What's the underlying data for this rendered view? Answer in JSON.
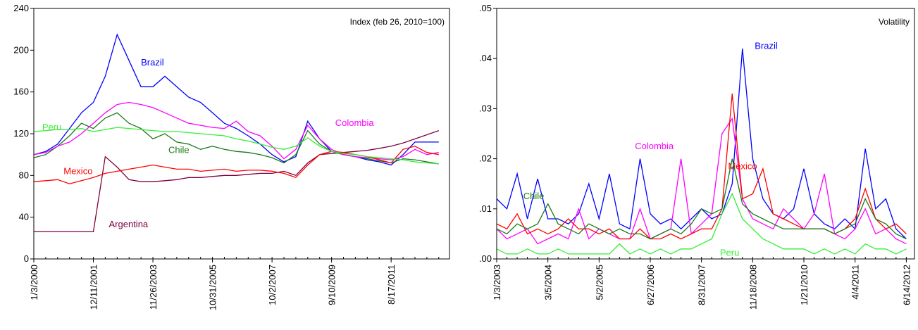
{
  "chart_data": [
    {
      "type": "line",
      "title": "Index (feb 26, 2010=100)",
      "categories": [
        "1/3/2000",
        null,
        null,
        null,
        null,
        "12/11/2001",
        null,
        null,
        null,
        null,
        "11/26/2003",
        null,
        null,
        null,
        null,
        "10/31/2005",
        null,
        null,
        null,
        null,
        "10/2/2007",
        null,
        null,
        null,
        null,
        "9/10/2009",
        null,
        null,
        null,
        null,
        "8/17/2011",
        null,
        null,
        null,
        null
      ],
      "series": [
        {
          "name": "Argentina",
          "color": "#800040",
          "values": [
            26,
            26,
            26,
            26,
            26,
            26,
            98,
            88,
            76,
            74,
            74,
            75,
            76,
            78,
            78,
            79,
            80,
            80,
            81,
            82,
            82,
            84,
            80,
            92,
            100,
            101,
            102,
            103,
            104,
            106,
            108,
            111,
            115,
            119,
            123
          ]
        },
        {
          "name": "Brazil",
          "color": "#0000ff",
          "values": [
            100,
            103,
            110,
            125,
            140,
            150,
            175,
            215,
            190,
            165,
            165,
            175,
            165,
            155,
            150,
            140,
            130,
            125,
            118,
            110,
            100,
            93,
            98,
            132,
            115,
            103,
            100,
            98,
            95,
            93,
            90,
            100,
            112,
            112,
            112
          ]
        },
        {
          "name": "Chile",
          "color": "#1a7a1a",
          "values": [
            97,
            100,
            108,
            118,
            130,
            125,
            135,
            140,
            130,
            125,
            115,
            120,
            112,
            110,
            105,
            108,
            105,
            103,
            102,
            100,
            97,
            92,
            100,
            123,
            110,
            103,
            100,
            98,
            96,
            94,
            92,
            96,
            95,
            93,
            91
          ]
        },
        {
          "name": "Colombia",
          "color": "#ff00ff",
          "values": [
            100,
            102,
            108,
            112,
            120,
            130,
            140,
            148,
            150,
            148,
            145,
            140,
            135,
            130,
            128,
            126,
            125,
            132,
            122,
            118,
            108,
            96,
            105,
            128,
            115,
            105,
            100,
            98,
            97,
            96,
            95,
            98,
            105,
            100,
            102
          ]
        },
        {
          "name": "Mexico",
          "color": "#ff0000",
          "values": [
            74,
            75,
            76,
            72,
            75,
            78,
            82,
            84,
            86,
            88,
            90,
            88,
            86,
            86,
            84,
            85,
            86,
            84,
            85,
            85,
            84,
            82,
            78,
            90,
            100,
            103,
            102,
            100,
            98,
            95,
            92,
            105,
            108,
            102,
            100
          ]
        },
        {
          "name": "Peru",
          "color": "#33ee33",
          "values": [
            122,
            123,
            124,
            124,
            125,
            122,
            124,
            126,
            125,
            124,
            123,
            122,
            122,
            121,
            120,
            119,
            118,
            115,
            113,
            110,
            107,
            105,
            108,
            116,
            108,
            103,
            101,
            100,
            98,
            97,
            96,
            95,
            93,
            92,
            91
          ]
        }
      ],
      "ylim": [
        0,
        240
      ],
      "yticks": [
        0,
        40,
        80,
        120,
        160,
        200,
        240
      ]
    },
    {
      "type": "line",
      "title": "Volatility",
      "categories": [
        "1/3/2003",
        null,
        null,
        null,
        null,
        "3/5/2004",
        null,
        null,
        null,
        null,
        "5/2/2005",
        null,
        null,
        null,
        null,
        "6/27/2006",
        null,
        null,
        null,
        null,
        "8/31/2007",
        null,
        null,
        null,
        null,
        "11/18/2008",
        null,
        null,
        null,
        null,
        "1/21/2010",
        null,
        null,
        null,
        null,
        "4/4/2011",
        null,
        null,
        null,
        null,
        "6/14/2012"
      ],
      "series": [
        {
          "name": "Brazil",
          "color": "#0000ff",
          "values": [
            0.012,
            0.01,
            0.017,
            0.008,
            0.016,
            0.008,
            0.008,
            0.007,
            0.009,
            0.015,
            0.008,
            0.017,
            0.007,
            0.006,
            0.02,
            0.009,
            0.007,
            0.008,
            0.006,
            0.008,
            0.01,
            0.008,
            0.009,
            0.015,
            0.042,
            0.02,
            0.012,
            0.009,
            0.008,
            0.01,
            0.018,
            0.009,
            0.007,
            0.006,
            0.008,
            0.006,
            0.022,
            0.01,
            0.012,
            0.006,
            0.004
          ]
        },
        {
          "name": "Colombia",
          "color": "#ff00ff",
          "values": [
            0.006,
            0.004,
            0.005,
            0.006,
            0.003,
            0.004,
            0.005,
            0.004,
            0.01,
            0.004,
            0.006,
            0.005,
            0.004,
            0.004,
            0.01,
            0.004,
            0.005,
            0.006,
            0.02,
            0.005,
            0.007,
            0.009,
            0.025,
            0.028,
            0.012,
            0.008,
            0.007,
            0.006,
            0.01,
            0.008,
            0.006,
            0.009,
            0.017,
            0.005,
            0.004,
            0.006,
            0.01,
            0.005,
            0.006,
            0.004,
            0.003
          ]
        },
        {
          "name": "Mexico",
          "color": "#ff0000",
          "values": [
            0.007,
            0.006,
            0.009,
            0.005,
            0.006,
            0.005,
            0.006,
            0.008,
            0.006,
            0.006,
            0.005,
            0.006,
            0.004,
            0.004,
            0.006,
            0.004,
            0.004,
            0.005,
            0.004,
            0.005,
            0.006,
            0.006,
            0.01,
            0.033,
            0.012,
            0.013,
            0.018,
            0.009,
            0.008,
            0.007,
            0.006,
            0.006,
            0.006,
            0.005,
            0.006,
            0.008,
            0.014,
            0.008,
            0.006,
            0.007,
            0.005
          ]
        },
        {
          "name": "Chile",
          "color": "#1a7a1a",
          "values": [
            0.006,
            0.005,
            0.007,
            0.006,
            0.007,
            0.011,
            0.007,
            0.006,
            0.005,
            0.007,
            0.006,
            0.005,
            0.006,
            0.005,
            0.005,
            0.004,
            0.005,
            0.006,
            0.005,
            0.007,
            0.01,
            0.009,
            0.01,
            0.02,
            0.011,
            0.009,
            0.008,
            0.007,
            0.006,
            0.006,
            0.006,
            0.006,
            0.006,
            0.005,
            0.006,
            0.007,
            0.012,
            0.008,
            0.007,
            0.005,
            0.004
          ]
        },
        {
          "name": "Peru",
          "color": "#33ee33",
          "values": [
            0.002,
            0.001,
            0.001,
            0.002,
            0.001,
            0.001,
            0.002,
            0.001,
            0.001,
            0.001,
            0.001,
            0.001,
            0.003,
            0.001,
            0.002,
            0.001,
            0.002,
            0.001,
            0.002,
            0.002,
            0.003,
            0.004,
            0.009,
            0.013,
            0.008,
            0.006,
            0.004,
            0.003,
            0.002,
            0.002,
            0.002,
            0.001,
            0.002,
            0.001,
            0.002,
            0.001,
            0.003,
            0.002,
            0.002,
            0.001,
            0.002
          ]
        }
      ],
      "ylim": [
        0,
        0.05
      ],
      "yticks": [
        {
          "value": 0,
          "label": ".00"
        },
        {
          "value": 0.01,
          "label": ".01"
        },
        {
          "value": 0.02,
          "label": ".02"
        },
        {
          "value": 0.03,
          "label": ".03"
        },
        {
          "value": 0.04,
          "label": ".04"
        },
        {
          "value": 0.05,
          "label": ".05"
        }
      ]
    }
  ]
}
